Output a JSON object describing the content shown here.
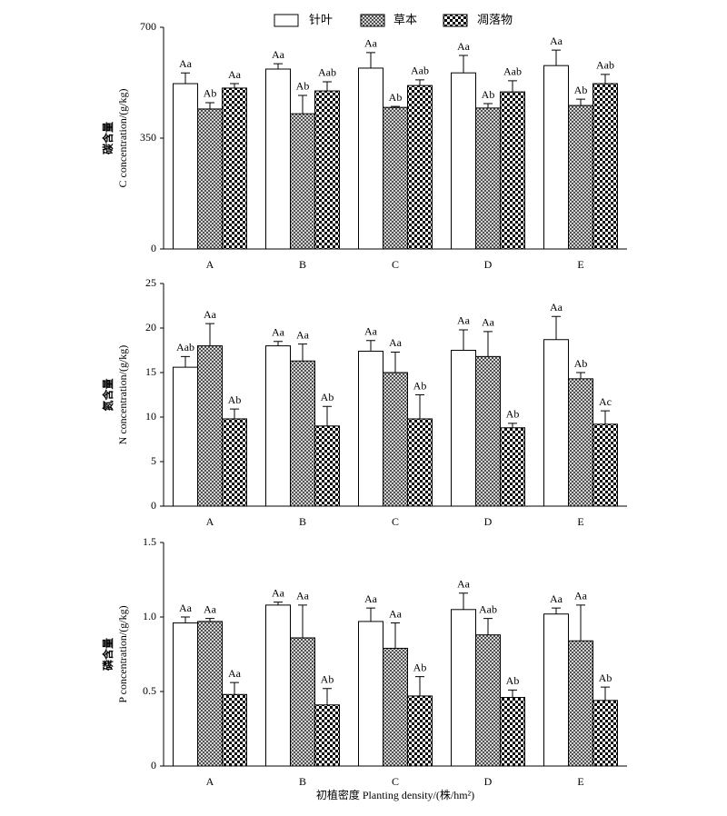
{
  "chart_data": [
    {
      "type": "bar",
      "ylabel": [
        "碳含量",
        "C concentration/(g/kg)"
      ],
      "categories": [
        "A",
        "B",
        "C",
        "D",
        "E"
      ],
      "ylim": [
        0,
        700
      ],
      "yticks": [
        0,
        350,
        700
      ],
      "series": [
        {
          "name": "针叶",
          "pattern": "white",
          "values": [
            522,
            568,
            571,
            556,
            579
          ],
          "errors": [
            34,
            17,
            49,
            55,
            49
          ],
          "annotations": [
            "Aa",
            "Aa",
            "Aa",
            "Aa",
            "Aa"
          ]
        },
        {
          "name": "草本",
          "pattern": "grid",
          "values": [
            442,
            427,
            447,
            445,
            453
          ],
          "errors": [
            20,
            58,
            3,
            14,
            20
          ],
          "annotations": [
            "Ab",
            "Ab",
            "Ab",
            "Ab",
            "Ab"
          ]
        },
        {
          "name": "凋落物",
          "pattern": "checker",
          "values": [
            508,
            499,
            516,
            496,
            522
          ],
          "errors": [
            14,
            29,
            18,
            35,
            29
          ],
          "annotations": [
            "Aa",
            "Aab",
            "Aab",
            "Aab",
            "Aab"
          ]
        }
      ]
    },
    {
      "type": "bar",
      "ylabel": [
        "氮含量",
        "N concentration/(g/kg)"
      ],
      "categories": [
        "A",
        "B",
        "C",
        "D",
        "E"
      ],
      "ylim": [
        0,
        25
      ],
      "yticks": [
        0,
        5,
        10,
        15,
        20,
        25
      ],
      "series": [
        {
          "pattern": "white",
          "values": [
            15.6,
            18.0,
            17.4,
            17.5,
            18.7
          ],
          "errors": [
            1.2,
            0.5,
            1.2,
            2.3,
            2.6
          ],
          "annotations": [
            "Aab",
            "Aa",
            "Aa",
            "Aa",
            "Aa"
          ]
        },
        {
          "pattern": "grid",
          "values": [
            18.0,
            16.3,
            15.0,
            16.8,
            14.3
          ],
          "errors": [
            2.5,
            1.9,
            2.3,
            2.8,
            0.7
          ],
          "annotations": [
            "Aa",
            "Aa",
            "Aa",
            "Aa",
            "Ab"
          ]
        },
        {
          "pattern": "checker",
          "values": [
            9.8,
            9.0,
            9.8,
            8.8,
            9.2
          ],
          "errors": [
            1.1,
            2.2,
            2.7,
            0.5,
            1.5
          ],
          "annotations": [
            "Ab",
            "Ab",
            "Ab",
            "Ab",
            "Ac"
          ]
        }
      ]
    },
    {
      "type": "bar",
      "ylabel": [
        "磷含量",
        "P concentration/(g/kg)"
      ],
      "xlabel": "初植密度 Planting density/(株/hm²)",
      "categories": [
        "A",
        "B",
        "C",
        "D",
        "E"
      ],
      "ylim": [
        0,
        1.5
      ],
      "yticks": [
        0,
        0.5,
        {
          "value": 1,
          "label": "1.0"
        },
        1.5
      ],
      "series": [
        {
          "pattern": "white",
          "values": [
            0.96,
            1.08,
            0.97,
            1.05,
            1.02
          ],
          "errors": [
            0.04,
            0.02,
            0.09,
            0.11,
            0.04
          ],
          "annotations": [
            "Aa",
            "Aa",
            "Aa",
            "Aa",
            "Aa"
          ]
        },
        {
          "pattern": "grid",
          "values": [
            0.97,
            0.86,
            0.79,
            0.88,
            0.84
          ],
          "errors": [
            0.02,
            0.22,
            0.17,
            0.11,
            0.24
          ],
          "annotations": [
            "Aa",
            "Aa",
            "Aa",
            "Aab",
            "Aa"
          ]
        },
        {
          "pattern": "checker",
          "values": [
            0.48,
            0.41,
            0.47,
            0.46,
            0.44
          ],
          "errors": [
            0.08,
            0.11,
            0.13,
            0.05,
            0.09
          ],
          "annotations": [
            "Aa",
            "Ab",
            "Ab",
            "Ab",
            "Ab"
          ]
        }
      ]
    }
  ]
}
